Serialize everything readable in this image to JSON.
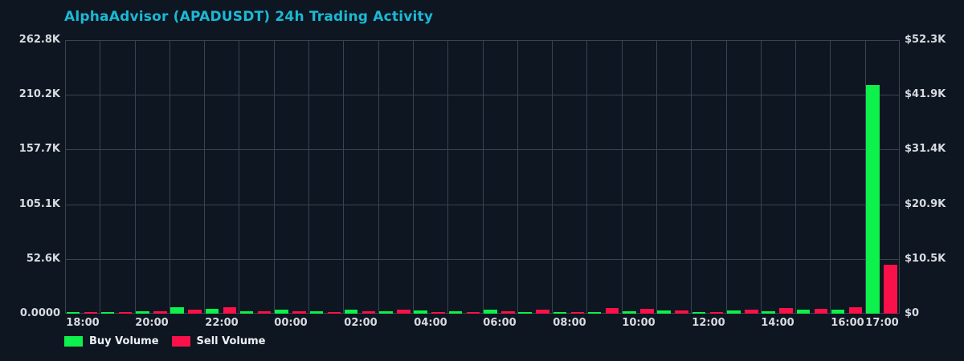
{
  "title": "AlphaAdvisor (APADUSDT) 24h Trading Activity",
  "colors": {
    "background": "#0d1621",
    "title": "#1bb9d5",
    "grid": "#3a4450",
    "tick_label": "#d7dbdf",
    "legend_text": "#eef1f4",
    "buy": "#0ef04b",
    "sell": "#fa1149"
  },
  "legend": {
    "items": [
      {
        "label": "Buy Volume",
        "series": "buy"
      },
      {
        "label": "Sell Volume",
        "series": "sell"
      }
    ]
  },
  "chart_data": {
    "type": "bar",
    "title": "AlphaAdvisor (APADUSDT) 24h Trading Activity",
    "grid": true,
    "legend_position": "bottom-left",
    "categories": [
      "18:00",
      "19:00",
      "20:00",
      "21:00",
      "22:00",
      "23:00",
      "00:00",
      "01:00",
      "02:00",
      "03:00",
      "04:00",
      "05:00",
      "06:00",
      "07:00",
      "08:00",
      "09:00",
      "10:00",
      "11:00",
      "12:00",
      "13:00",
      "14:00",
      "15:00",
      "16:00",
      "17:00"
    ],
    "x_tick_labels": [
      "18:00",
      "20:00",
      "22:00",
      "00:00",
      "02:00",
      "04:00",
      "06:00",
      "08:00",
      "10:00",
      "12:00",
      "14:00",
      "16:00",
      "17:00"
    ],
    "series": [
      {
        "name": "Buy Volume",
        "color": "#0ef04b",
        "axis": "left",
        "values": [
          1500,
          1600,
          2100,
          6500,
          4300,
          2500,
          4100,
          2200,
          4100,
          2100,
          3300,
          2600,
          4100,
          1400,
          1300,
          1700,
          2600,
          3000,
          1300,
          2900,
          2300,
          3600,
          4100,
          219600
        ]
      },
      {
        "name": "Sell Volume",
        "color": "#fa1149",
        "axis": "left",
        "values": [
          1300,
          1400,
          2100,
          4000,
          6500,
          2400,
          2100,
          1500,
          2600,
          4100,
          1600,
          1600,
          2600,
          4000,
          1700,
          5200,
          4700,
          2900,
          1700,
          3600,
          5100,
          4400,
          6400,
          47000
        ]
      }
    ],
    "left_axis": {
      "min": 0,
      "max": 262800,
      "ticks": [
        {
          "label": "262.8K",
          "value": 262800
        },
        {
          "label": "210.2K",
          "value": 210200
        },
        {
          "label": "157.7K",
          "value": 157700
        },
        {
          "label": "105.1K",
          "value": 105100
        },
        {
          "label": "52.6K",
          "value": 52600
        },
        {
          "label": "0.0000",
          "value": 0
        }
      ]
    },
    "right_axis": {
      "min": 0,
      "max": 52300,
      "ticks": [
        {
          "label": "$52.3K",
          "value": 52300
        },
        {
          "label": "$41.9K",
          "value": 41900
        },
        {
          "label": "$31.4K",
          "value": 31400
        },
        {
          "label": "$20.9K",
          "value": 20900
        },
        {
          "label": "$10.5K",
          "value": 10500
        },
        {
          "label": "$0",
          "value": 0
        }
      ]
    }
  }
}
